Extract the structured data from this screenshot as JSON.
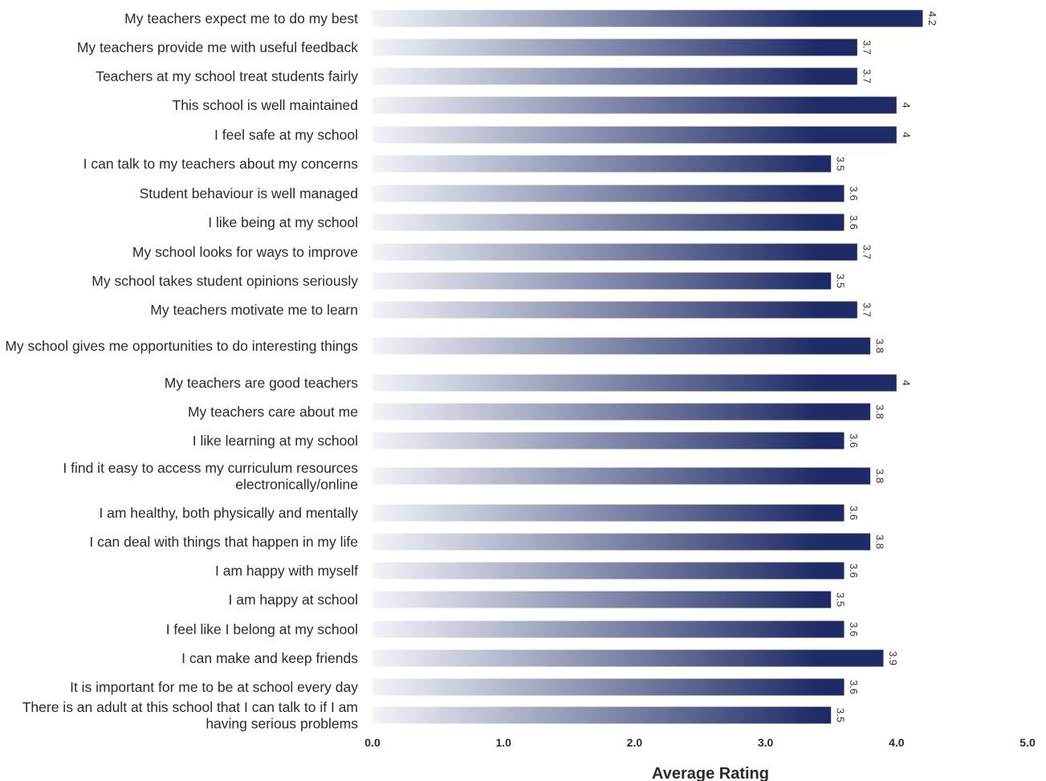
{
  "chart_data": {
    "type": "bar",
    "orientation": "horizontal",
    "xlabel": "Average Rating",
    "ylabel": "",
    "xlim": [
      0,
      5
    ],
    "ticks": [
      "0.0",
      "1.0",
      "2.0",
      "3.0",
      "4.0",
      "5.0"
    ],
    "grid": false,
    "bar_color": "#1f2b66",
    "bar_color_light": "#f3f4f8",
    "categories": [
      [
        "My teachers expect me to do my best"
      ],
      [
        "My teachers provide me with useful feedback"
      ],
      [
        "Teachers at my school treat students fairly"
      ],
      [
        "This school is well maintained"
      ],
      [
        "I feel safe at my school"
      ],
      [
        "I can talk to my teachers about my concerns"
      ],
      [
        "Student behaviour is well managed"
      ],
      [
        "I like being at my school"
      ],
      [
        "My school looks for ways to improve"
      ],
      [
        "My school takes student opinions seriously"
      ],
      [
        "My teachers motivate me to learn"
      ],
      [
        "My school gives me opportunities to do interesting things"
      ],
      [
        "My teachers are good teachers"
      ],
      [
        "My teachers care about me"
      ],
      [
        "I like learning at my school"
      ],
      [
        "I find it easy to access my curriculum resources",
        "electronically/online"
      ],
      [
        "I am healthy, both physically and mentally"
      ],
      [
        "I can deal with things that happen in my life"
      ],
      [
        "I am happy with myself"
      ],
      [
        "I am happy at school"
      ],
      [
        "I feel like I belong at my school"
      ],
      [
        "I can make and keep friends"
      ],
      [
        "It is important for me to be at school every day"
      ],
      [
        "There is an adult at this school that I can talk to if I am",
        "having serious problems"
      ]
    ],
    "values": [
      4.2,
      3.7,
      3.7,
      4,
      4,
      3.5,
      3.6,
      3.6,
      3.7,
      3.5,
      3.7,
      3.8,
      4,
      3.8,
      3.6,
      3.8,
      3.6,
      3.8,
      3.6,
      3.5,
      3.6,
      3.9,
      3.6,
      3.5
    ],
    "value_labels": [
      "4.2",
      "3.7",
      "3.7",
      "4",
      "4",
      "3.5",
      "3.6",
      "3.6",
      "3.7",
      "3.5",
      "3.7",
      "3.8",
      "4",
      "3.8",
      "3.6",
      "3.8",
      "3.6",
      "3.8",
      "3.6",
      "3.5",
      "3.6",
      "3.9",
      "3.6",
      "3.5"
    ]
  }
}
